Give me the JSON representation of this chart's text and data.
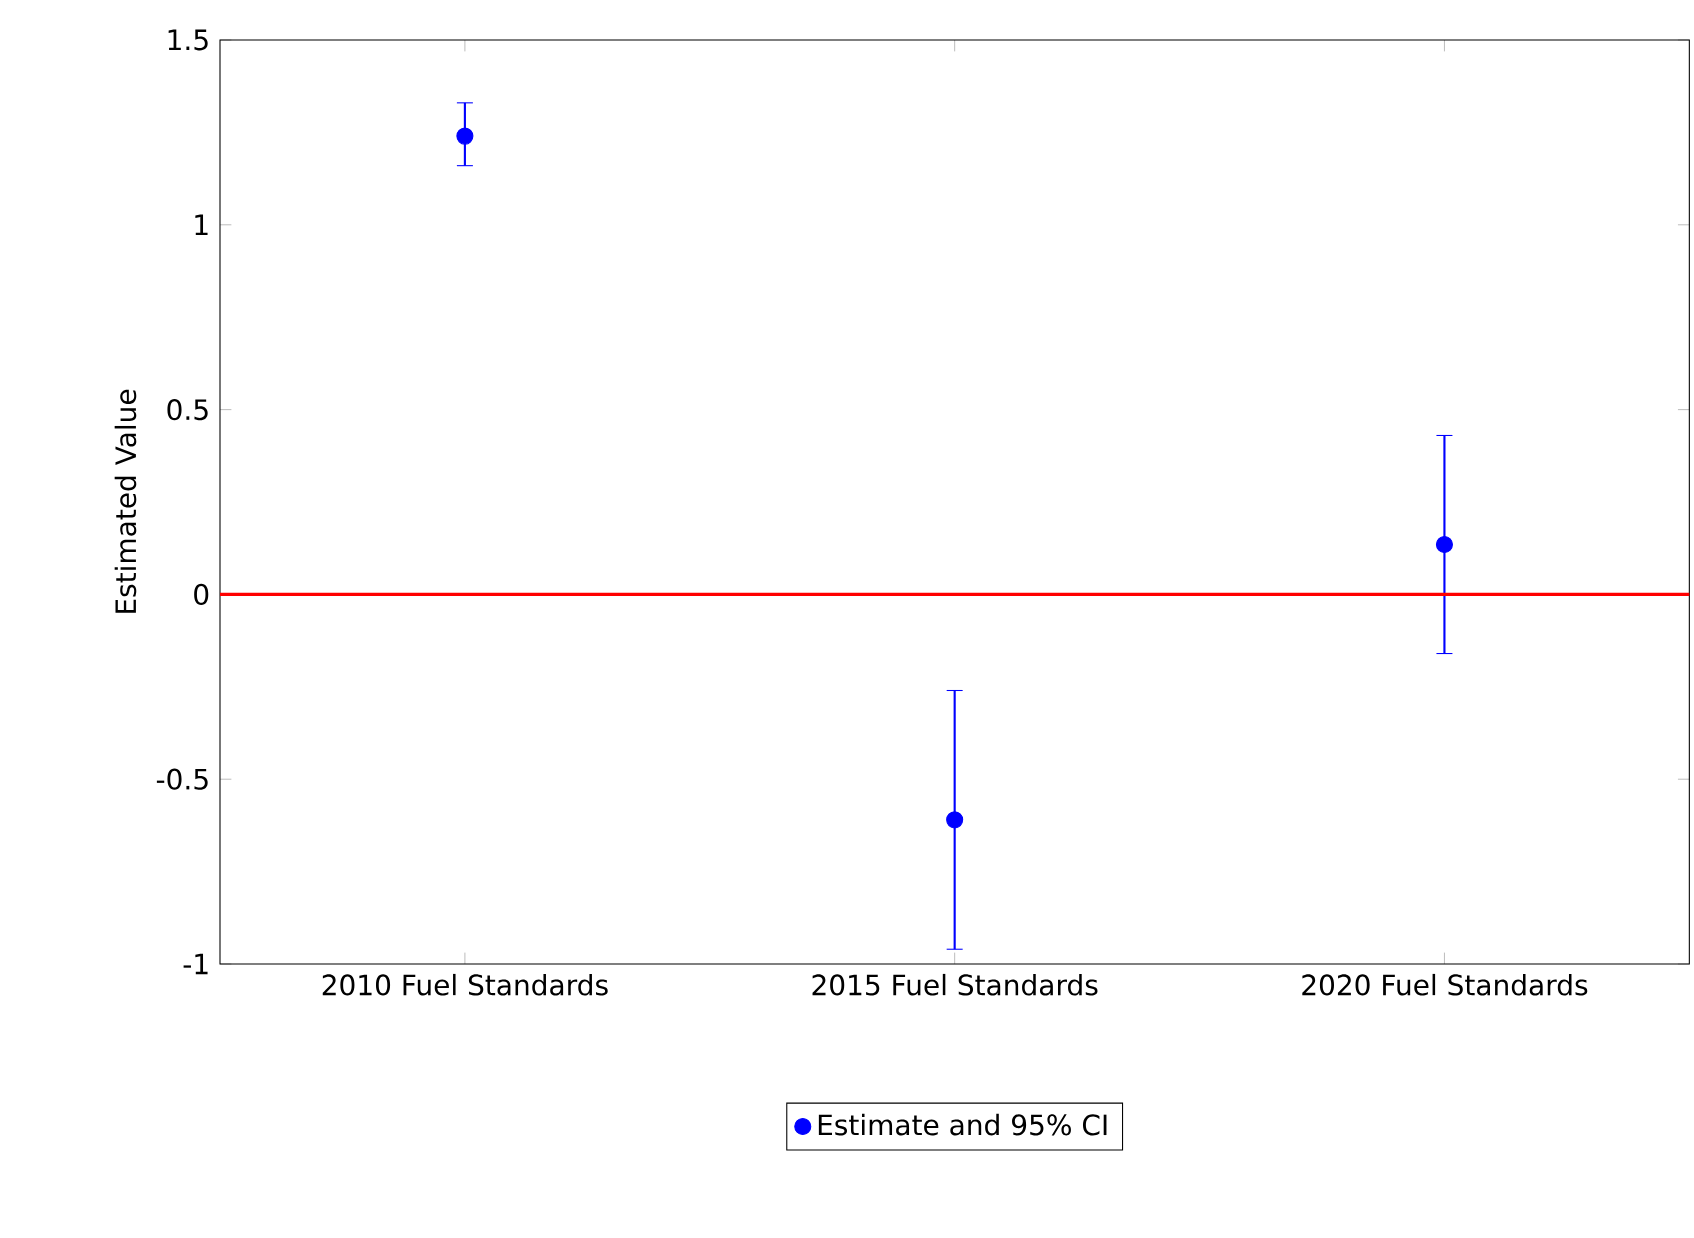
{
  "chart_data": {
    "type": "scatter",
    "ylabel": "Estimated Value",
    "categories": [
      "2010 Fuel Standards",
      "2015 Fuel Standards",
      "2020 Fuel Standards"
    ],
    "series": [
      {
        "name": "Estimate and 95% CI",
        "color": "#0000ff",
        "values": [
          1.24,
          -0.61,
          0.135
        ],
        "errors": [
          [
            1.16,
            1.33
          ],
          [
            -0.96,
            -0.26
          ],
          [
            -0.16,
            0.43
          ]
        ]
      }
    ],
    "ylim": [
      -1,
      1.5
    ],
    "yticks": [
      -1,
      -0.5,
      0,
      0.5,
      1,
      1.5
    ],
    "ref_lines": [
      {
        "axis": "y",
        "value": 0,
        "color": "#ff0000"
      }
    ],
    "marker": "circle",
    "legend": "bottom"
  }
}
